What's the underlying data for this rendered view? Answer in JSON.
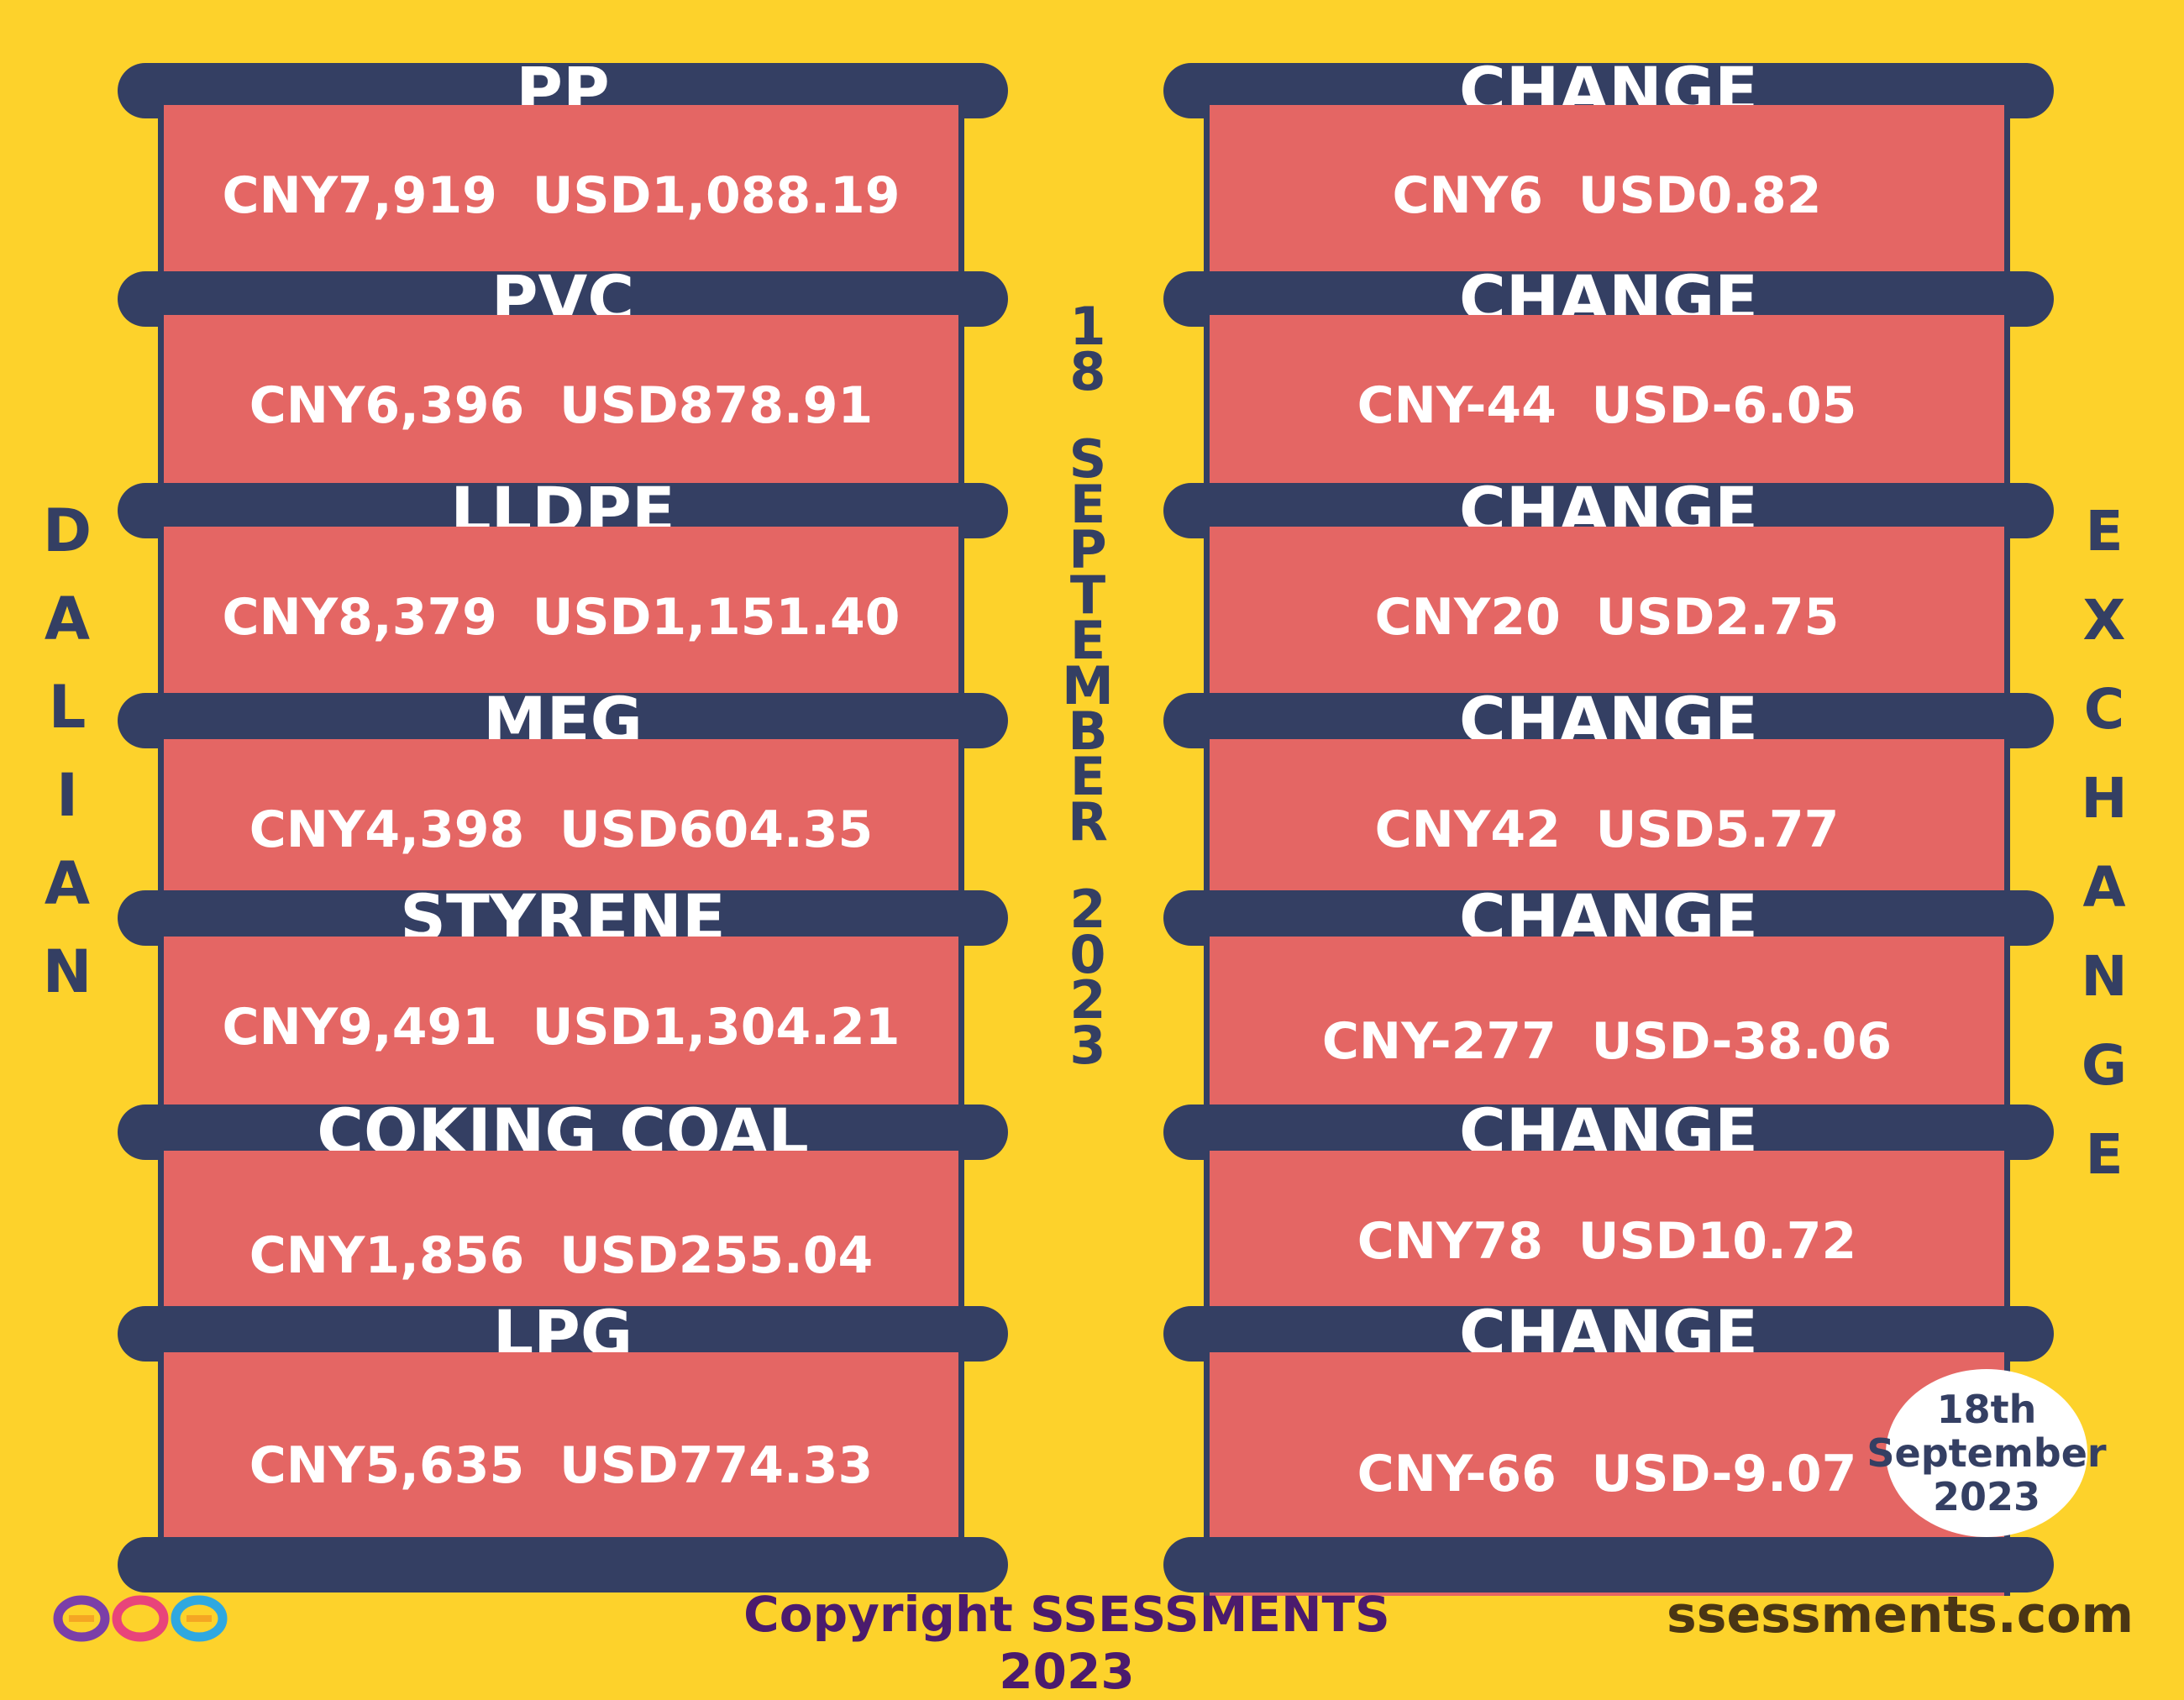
{
  "left_label": "DALIAN",
  "right_label": "EXCHANGE",
  "center_date_lines": [
    "18",
    "SEPTEMBER",
    "2023"
  ],
  "products": [
    {
      "name": "PP",
      "price": "CNY7,919  USD1,088.19",
      "change_label": "CHANGE",
      "change": "CNY6  USD0.82"
    },
    {
      "name": "PVC",
      "price": "CNY6,396  USD878.91",
      "change_label": "CHANGE",
      "change": "CNY-44  USD-6.05"
    },
    {
      "name": "LLDPE",
      "price": "CNY8,379  USD1,151.40",
      "change_label": "CHANGE",
      "change": "CNY20  USD2.75"
    },
    {
      "name": "MEG",
      "price": "CNY4,398  USD604.35",
      "change_label": "CHANGE",
      "change": "CNY42  USD5.77"
    },
    {
      "name": "STYRENE",
      "price": "CNY9,491  USD1,304.21",
      "change_label": "CHANGE",
      "change": "CNY-277  USD-38.06"
    },
    {
      "name": "COKING COAL",
      "price": "CNY1,856  USD255.04",
      "change_label": "CHANGE",
      "change": "CNY78  USD10.72"
    },
    {
      "name": "LPG",
      "price": "CNY5,635  USD774.33",
      "change_label": "CHANGE",
      "change": "CNY-66  USD-9.07"
    }
  ],
  "badge": {
    "line1": "18th",
    "line2": "September",
    "line3": "2023"
  },
  "footer": {
    "copyright": "Copyright SSESSMENTS 2023",
    "website": "ssessments.com"
  },
  "colors": {
    "background": "#FDD22B",
    "band": "#343F63",
    "box": "#E46664",
    "text_light": "#FFFFFF"
  },
  "logo_icon": "infinity-loops-logo"
}
